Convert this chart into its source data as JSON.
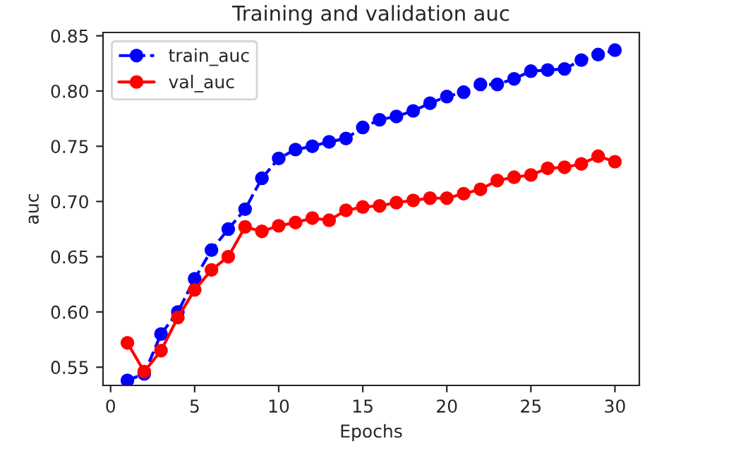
{
  "chart_data": {
    "type": "line",
    "title": "Training and validation auc",
    "xlabel": "Epochs",
    "ylabel": "auc",
    "x": [
      1,
      2,
      3,
      4,
      5,
      6,
      7,
      8,
      9,
      10,
      11,
      12,
      13,
      14,
      15,
      16,
      17,
      18,
      19,
      20,
      21,
      22,
      23,
      24,
      25,
      26,
      27,
      28,
      29,
      30
    ],
    "series": [
      {
        "name": "train_auc",
        "color": "#0000ff",
        "line_style": "dashed",
        "values": [
          0.538,
          0.544,
          0.58,
          0.6,
          0.63,
          0.656,
          0.675,
          0.693,
          0.721,
          0.739,
          0.747,
          0.75,
          0.754,
          0.757,
          0.767,
          0.774,
          0.777,
          0.782,
          0.789,
          0.795,
          0.799,
          0.806,
          0.806,
          0.811,
          0.818,
          0.819,
          0.82,
          0.828,
          0.833,
          0.837
        ]
      },
      {
        "name": "val_auc",
        "color": "#ff0000",
        "line_style": "solid",
        "values": [
          0.572,
          0.546,
          0.565,
          0.595,
          0.62,
          0.638,
          0.65,
          0.677,
          0.673,
          0.678,
          0.681,
          0.685,
          0.683,
          0.692,
          0.695,
          0.696,
          0.699,
          0.701,
          0.703,
          0.703,
          0.707,
          0.711,
          0.719,
          0.722,
          0.724,
          0.73,
          0.731,
          0.734,
          0.741,
          0.736
        ]
      }
    ],
    "marker": "circle",
    "legend": "top left",
    "grid": false,
    "xlim": [
      -0.45,
      31.45
    ],
    "ylim": [
      0.5335,
      0.853
    ],
    "xticks": [
      0,
      5,
      10,
      15,
      20,
      25,
      30
    ],
    "yticks": [
      {
        "value": 0.55,
        "label": "0.55"
      },
      {
        "value": 0.6,
        "label": "0.60"
      },
      {
        "value": 0.65,
        "label": "0.65"
      },
      {
        "value": 0.7,
        "label": "0.70"
      },
      {
        "value": 0.75,
        "label": "0.75"
      },
      {
        "value": 0.8,
        "label": "0.80"
      },
      {
        "value": 0.85,
        "label": "0.85"
      }
    ]
  }
}
